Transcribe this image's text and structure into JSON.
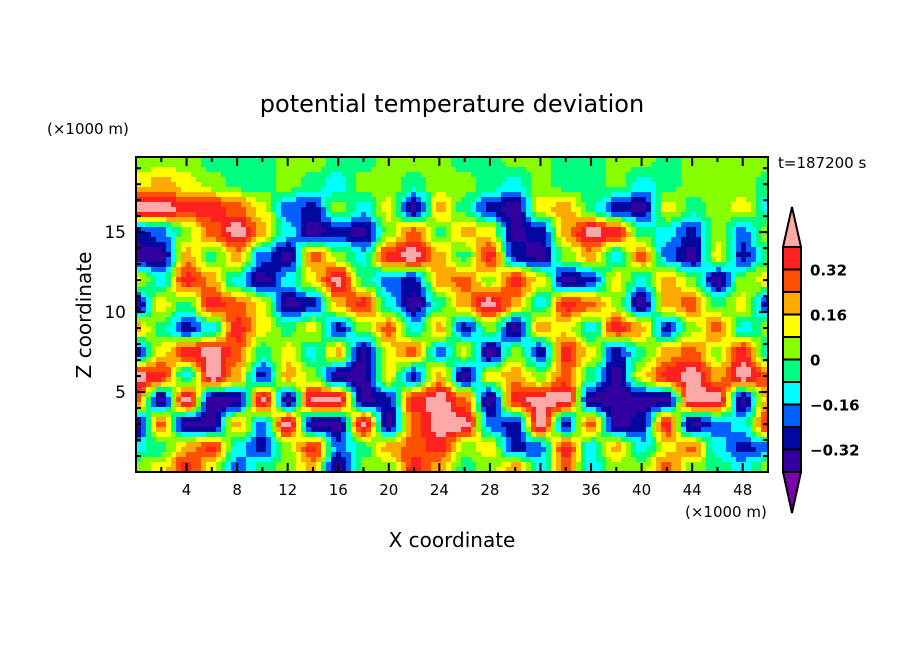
{
  "chart_data": {
    "type": "heatmap",
    "title": "potential temperature deviation",
    "xlabel": "X coordinate",
    "ylabel": "Z coordinate",
    "x_unit": "(×1000 m)",
    "y_unit": "(×1000 m)",
    "time_label": "t=187200 s",
    "xlim": [
      0,
      50
    ],
    "ylim": [
      0,
      19.7
    ],
    "x_ticks": [
      "4",
      "8",
      "12",
      "16",
      "20",
      "24",
      "28",
      "32",
      "36",
      "40",
      "44",
      "48"
    ],
    "x_tick_values": [
      4,
      8,
      12,
      16,
      20,
      24,
      28,
      32,
      36,
      40,
      44,
      48
    ],
    "y_ticks": [
      "5",
      "10",
      "15"
    ],
    "y_tick_values": [
      5,
      10,
      15
    ],
    "colorbar": {
      "levels": [
        -0.4,
        -0.32,
        -0.24,
        -0.16,
        -0.08,
        0,
        0.08,
        0.16,
        0.24,
        0.32,
        0.4
      ],
      "colors": [
        "#7a00a8",
        "#3300a0",
        "#0008a0",
        "#0060ff",
        "#00ffff",
        "#00ff80",
        "#88ff00",
        "#ffff00",
        "#ffaa00",
        "#ff5000",
        "#ff2020",
        "#ffa8a8"
      ],
      "tick_labels": [
        "0.32",
        "0.16",
        "0",
        "−0.16",
        "−0.32"
      ],
      "tick_values": [
        0.32,
        0.16,
        0,
        -0.16,
        -0.32
      ],
      "extend": "both"
    },
    "grid_x": [
      0,
      2,
      4,
      6,
      8,
      10,
      12,
      14,
      16,
      18,
      20,
      22,
      24,
      26,
      28,
      30,
      32,
      34,
      36,
      38,
      40,
      42,
      44,
      46,
      48,
      50
    ],
    "grid_z": [
      19.5,
      18,
      16.5,
      15,
      13.5,
      12,
      10.5,
      9,
      7.5,
      6,
      4.5,
      3,
      1.5,
      0.3
    ],
    "values": [
      [
        0.04,
        0.04,
        0.04,
        -0.04,
        -0.04,
        -0.04,
        0.04,
        0.04,
        -0.04,
        -0.04,
        0.04,
        0.04,
        0.04,
        -0.04,
        -0.04,
        0.04,
        0.04,
        -0.04,
        -0.04,
        0.04,
        0.04,
        -0.04,
        0.04,
        0.04,
        0.04,
        0.04
      ],
      [
        0.12,
        0.2,
        0.12,
        0.04,
        -0.04,
        -0.04,
        0.04,
        -0.04,
        -0.12,
        0.04,
        0.04,
        -0.04,
        0.04,
        0.04,
        -0.04,
        -0.12,
        0.04,
        -0.04,
        -0.04,
        0.04,
        -0.12,
        -0.04,
        0.04,
        0.04,
        0.04,
        -0.04
      ],
      [
        0.45,
        0.45,
        0.36,
        0.36,
        0.28,
        0.12,
        -0.2,
        -0.28,
        0.04,
        -0.12,
        0.12,
        -0.36,
        0.2,
        -0.04,
        -0.28,
        -0.36,
        0.12,
        0.2,
        -0.04,
        -0.28,
        -0.36,
        0.12,
        -0.04,
        0.04,
        0.12,
        -0.12
      ],
      [
        -0.28,
        -0.2,
        0.04,
        0.28,
        0.45,
        0.2,
        -0.12,
        -0.36,
        -0.28,
        -0.36,
        0.04,
        0.28,
        -0.04,
        0.2,
        0.12,
        -0.36,
        -0.28,
        0.2,
        0.45,
        0.36,
        -0.04,
        -0.12,
        -0.28,
        0.04,
        -0.2,
        0.04
      ],
      [
        -0.36,
        -0.36,
        0.2,
        -0.04,
        0.2,
        -0.2,
        -0.36,
        0.28,
        0.04,
        -0.12,
        0.36,
        0.45,
        0.2,
        -0.04,
        0.36,
        -0.28,
        -0.36,
        0.04,
        0.2,
        -0.12,
        0.28,
        -0.2,
        -0.36,
        0.12,
        -0.28,
        -0.04
      ],
      [
        0.12,
        -0.12,
        0.36,
        0.2,
        -0.12,
        -0.36,
        -0.12,
        0.12,
        0.45,
        -0.04,
        -0.2,
        -0.28,
        0.2,
        0.28,
        0.04,
        0.36,
        0.12,
        -0.36,
        -0.28,
        0.12,
        -0.12,
        0.2,
        0.04,
        -0.36,
        0.04,
        0.12
      ],
      [
        -0.36,
        0.12,
        -0.04,
        0.36,
        0.28,
        0.12,
        -0.36,
        -0.28,
        0.2,
        0.36,
        -0.12,
        -0.36,
        -0.04,
        0.2,
        0.45,
        0.2,
        -0.12,
        0.36,
        0.28,
        0.04,
        -0.36,
        0.2,
        0.28,
        -0.04,
        0.12,
        -0.28
      ],
      [
        0.2,
        -0.04,
        -0.28,
        -0.12,
        0.36,
        0.12,
        -0.04,
        0.12,
        -0.28,
        0.04,
        0.28,
        -0.12,
        0.2,
        -0.28,
        0.04,
        -0.36,
        0.2,
        0.12,
        -0.12,
        0.36,
        0.2,
        -0.28,
        0.04,
        0.28,
        -0.12,
        0.04
      ],
      [
        -0.28,
        0.12,
        0.36,
        0.45,
        0.28,
        -0.04,
        0.12,
        -0.12,
        0.2,
        -0.36,
        0.12,
        0.28,
        -0.2,
        0.12,
        -0.36,
        0.04,
        -0.28,
        0.36,
        0.12,
        -0.28,
        -0.04,
        0.2,
        0.28,
        0.04,
        0.36,
        -0.12
      ],
      [
        0.45,
        0.36,
        -0.12,
        0.45,
        0.2,
        -0.28,
        0.2,
        0.04,
        -0.36,
        -0.36,
        0.12,
        -0.28,
        0.2,
        -0.36,
        0.12,
        0.2,
        0.04,
        0.28,
        -0.04,
        -0.36,
        0.12,
        0.36,
        0.45,
        0.2,
        0.45,
        0.28
      ],
      [
        0.28,
        -0.36,
        0.45,
        -0.36,
        -0.36,
        0.45,
        -0.36,
        0.45,
        0.45,
        -0.36,
        -0.28,
        0.36,
        0.45,
        0.28,
        -0.36,
        0.36,
        0.45,
        0.45,
        -0.36,
        -0.36,
        -0.36,
        -0.36,
        0.45,
        0.45,
        -0.36,
        0.2
      ],
      [
        -0.36,
        0.28,
        -0.36,
        -0.36,
        0.2,
        -0.2,
        0.45,
        -0.36,
        -0.36,
        0.45,
        -0.36,
        0.28,
        0.45,
        0.45,
        -0.2,
        -0.28,
        0.45,
        -0.28,
        0.28,
        -0.36,
        -0.28,
        0.36,
        -0.36,
        -0.2,
        -0.12,
        0.36
      ],
      [
        -0.12,
        -0.04,
        0.2,
        0.36,
        -0.12,
        -0.28,
        0.04,
        0.36,
        -0.2,
        -0.04,
        0.2,
        0.28,
        0.36,
        0.04,
        0.12,
        -0.28,
        -0.2,
        0.36,
        -0.12,
        0.2,
        -0.12,
        0.12,
        0.28,
        -0.12,
        -0.28,
        -0.2
      ],
      [
        0.04,
        0.12,
        0.36,
        0.12,
        -0.2,
        -0.04,
        0.04,
        0.2,
        -0.36,
        0.04,
        0.04,
        0.36,
        0.2,
        -0.04,
        0.04,
        0.2,
        -0.12,
        0.28,
        -0.12,
        0.04,
        0.04,
        0.28,
        0.04,
        -0.04,
        -0.12,
        0.04
      ]
    ]
  }
}
